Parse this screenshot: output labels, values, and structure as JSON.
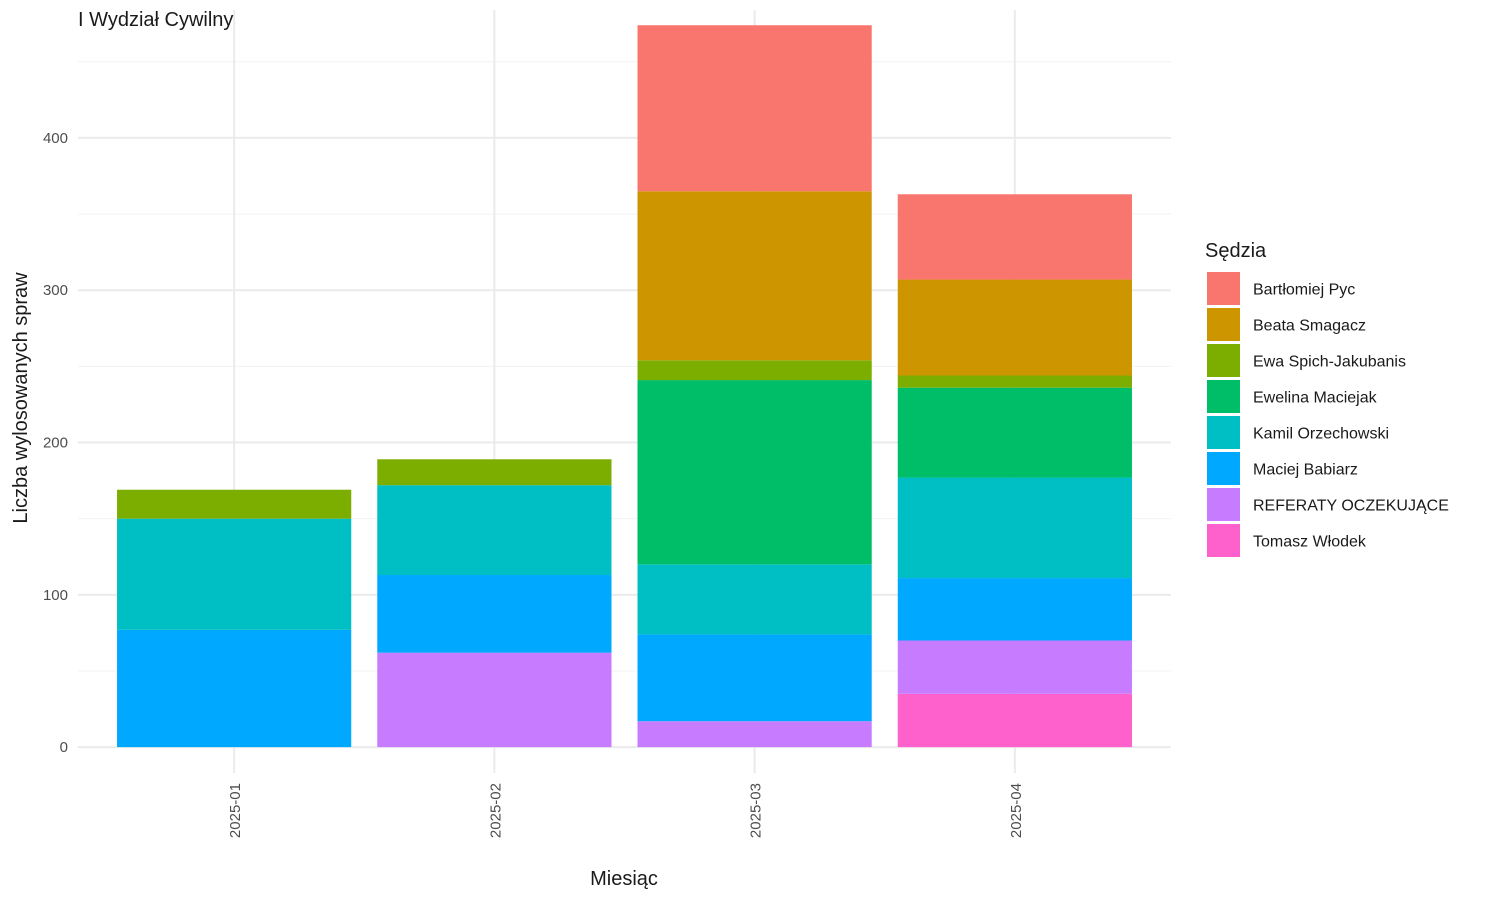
{
  "chart_data": {
    "type": "bar",
    "stacked": true,
    "title": "I Wydział Cywilny",
    "xlabel": "Miesiąc",
    "ylabel": "Liczba wylosowanych spraw",
    "ylim": [
      -17,
      484
    ],
    "y_ticks": [
      0,
      100,
      200,
      300,
      400
    ],
    "grid": true,
    "legend_title": "Sędzia",
    "legend_position": "right",
    "categories": [
      "2025-01",
      "2025-02",
      "2025-03",
      "2025-04"
    ],
    "series": [
      {
        "name": "Bartłomiej Pyc",
        "color": "#F8766D",
        "values": [
          0,
          0,
          109,
          56
        ]
      },
      {
        "name": "Beata Smagacz",
        "color": "#CD9600",
        "values": [
          0,
          0,
          111,
          63
        ]
      },
      {
        "name": "Ewa Spich-Jakubanis",
        "color": "#7CAE00",
        "values": [
          19,
          17,
          13,
          8
        ]
      },
      {
        "name": "Ewelina Maciejak",
        "color": "#00BE67",
        "values": [
          0,
          0,
          121,
          59
        ]
      },
      {
        "name": "Kamil Orzechowski",
        "color": "#00BFC4",
        "values": [
          73,
          59,
          46,
          66
        ]
      },
      {
        "name": "Maciej Babiarz",
        "color": "#00A9FF",
        "values": [
          77,
          51,
          57,
          41
        ]
      },
      {
        "name": "REFERATY OCZEKUJĄCE",
        "color": "#C77CFF",
        "values": [
          0,
          62,
          17,
          35
        ]
      },
      {
        "name": "Tomasz Włodek",
        "color": "#FF61CC",
        "values": [
          0,
          0,
          0,
          35
        ]
      }
    ]
  }
}
